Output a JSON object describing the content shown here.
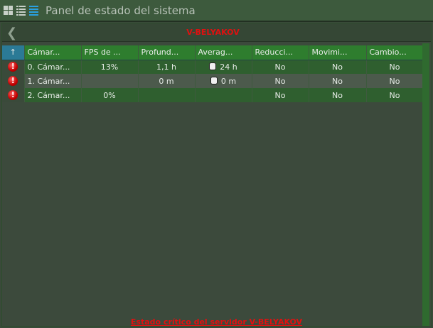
{
  "title": "Panel de estado del sistema",
  "server": "V-BELYAKOV",
  "columns": [
    "Cámar...",
    "FPS de ...",
    "Profund...",
    "Averag...",
    "Reducci...",
    "Movimi...",
    "Cambio..."
  ],
  "rows": [
    {
      "name": "0. Cámar...",
      "fps": "13%",
      "depth": "1,1 h",
      "avg": "24 h",
      "red": "No",
      "mov": "No",
      "chg": "No"
    },
    {
      "name": "1. Cámar...",
      "fps": "",
      "depth": "0 m",
      "avg": "0 m",
      "red": "No",
      "mov": "No",
      "chg": "No"
    },
    {
      "name": "2. Cámar...",
      "fps": "0%",
      "depth": "",
      "avg": "",
      "red": "No",
      "mov": "No",
      "chg": "No"
    }
  ],
  "footer": "Estado crítico del servidor V-BELYAKOV",
  "colors": {
    "alert": "#e01010",
    "header": "#2e7d2e",
    "sort": "#2b7a96"
  }
}
